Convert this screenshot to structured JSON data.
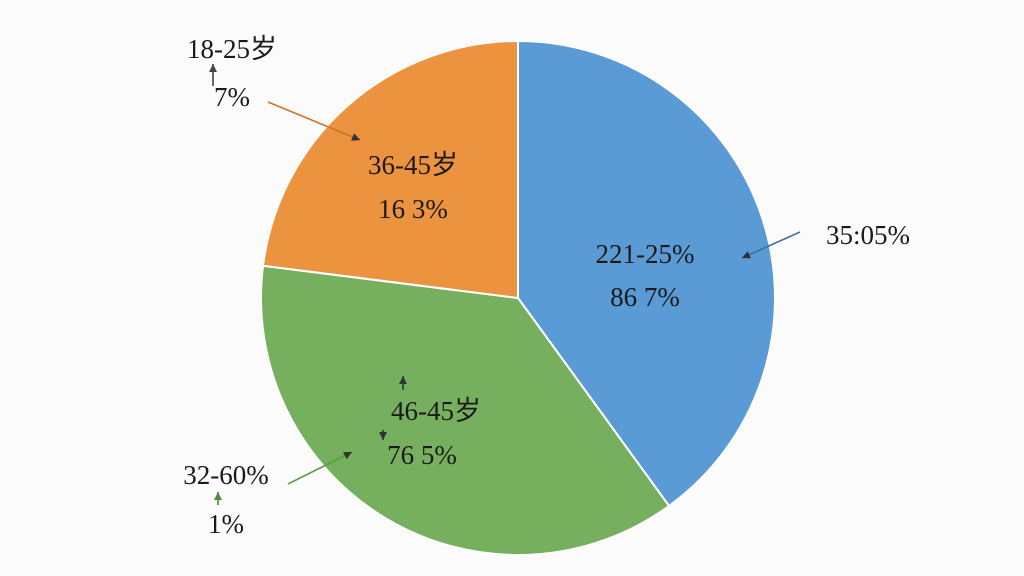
{
  "chart_data": {
    "type": "pie",
    "title": "",
    "slices": [
      {
        "category": "221-25%",
        "value_label": "86 7%",
        "value": 40,
        "color": "#5b9bd5"
      },
      {
        "category": "46-45岁",
        "value_label": "76 5%",
        "value": 37,
        "color": "#76b05e"
      },
      {
        "category": "36-45岁",
        "value_label": "16 3%",
        "value": 23,
        "color": "#ec9340"
      }
    ],
    "callouts": [
      {
        "line1": "18-25岁",
        "line2": "7%",
        "points_to": "36-45岁"
      },
      {
        "line1": "35:05%",
        "line2": "",
        "points_to": "221-25%"
      },
      {
        "line1": "32-60%",
        "line2": "1%",
        "points_to": "46-45岁"
      }
    ]
  }
}
